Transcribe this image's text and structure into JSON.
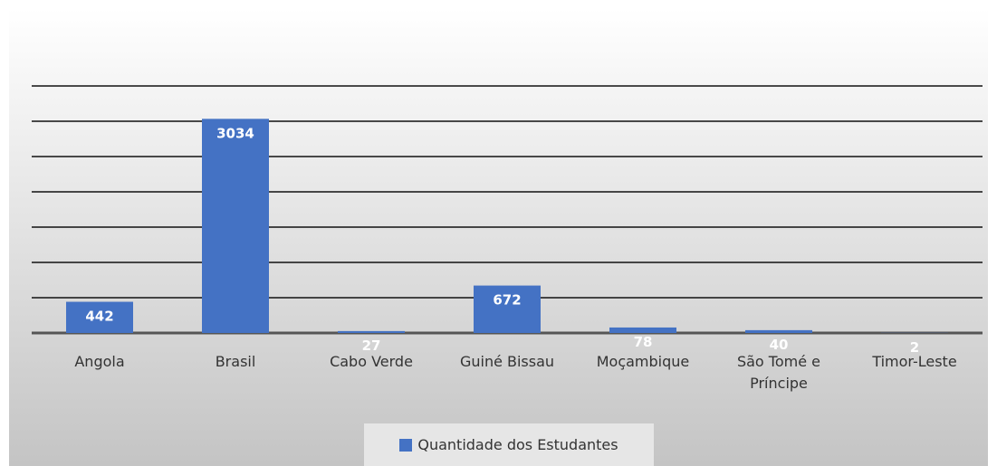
{
  "chart_data": {
    "type": "bar",
    "categories": [
      "Angola",
      "Brasil",
      "Cabo Verde",
      "Guiné Bissau",
      "Moçambique",
      "São Tomé e Príncipe",
      "Timor-Leste"
    ],
    "series": [
      {
        "name": "Quantidade dos Estudantes",
        "color": "#4472c4",
        "values": [
          442,
          3034,
          27,
          672,
          78,
          40,
          2
        ]
      }
    ],
    "ylim": [
      0,
      3500
    ],
    "yticks": [
      0,
      500,
      1000,
      1500,
      2000,
      2500,
      3000,
      3500
    ],
    "grid": true,
    "legend": "bottom"
  }
}
